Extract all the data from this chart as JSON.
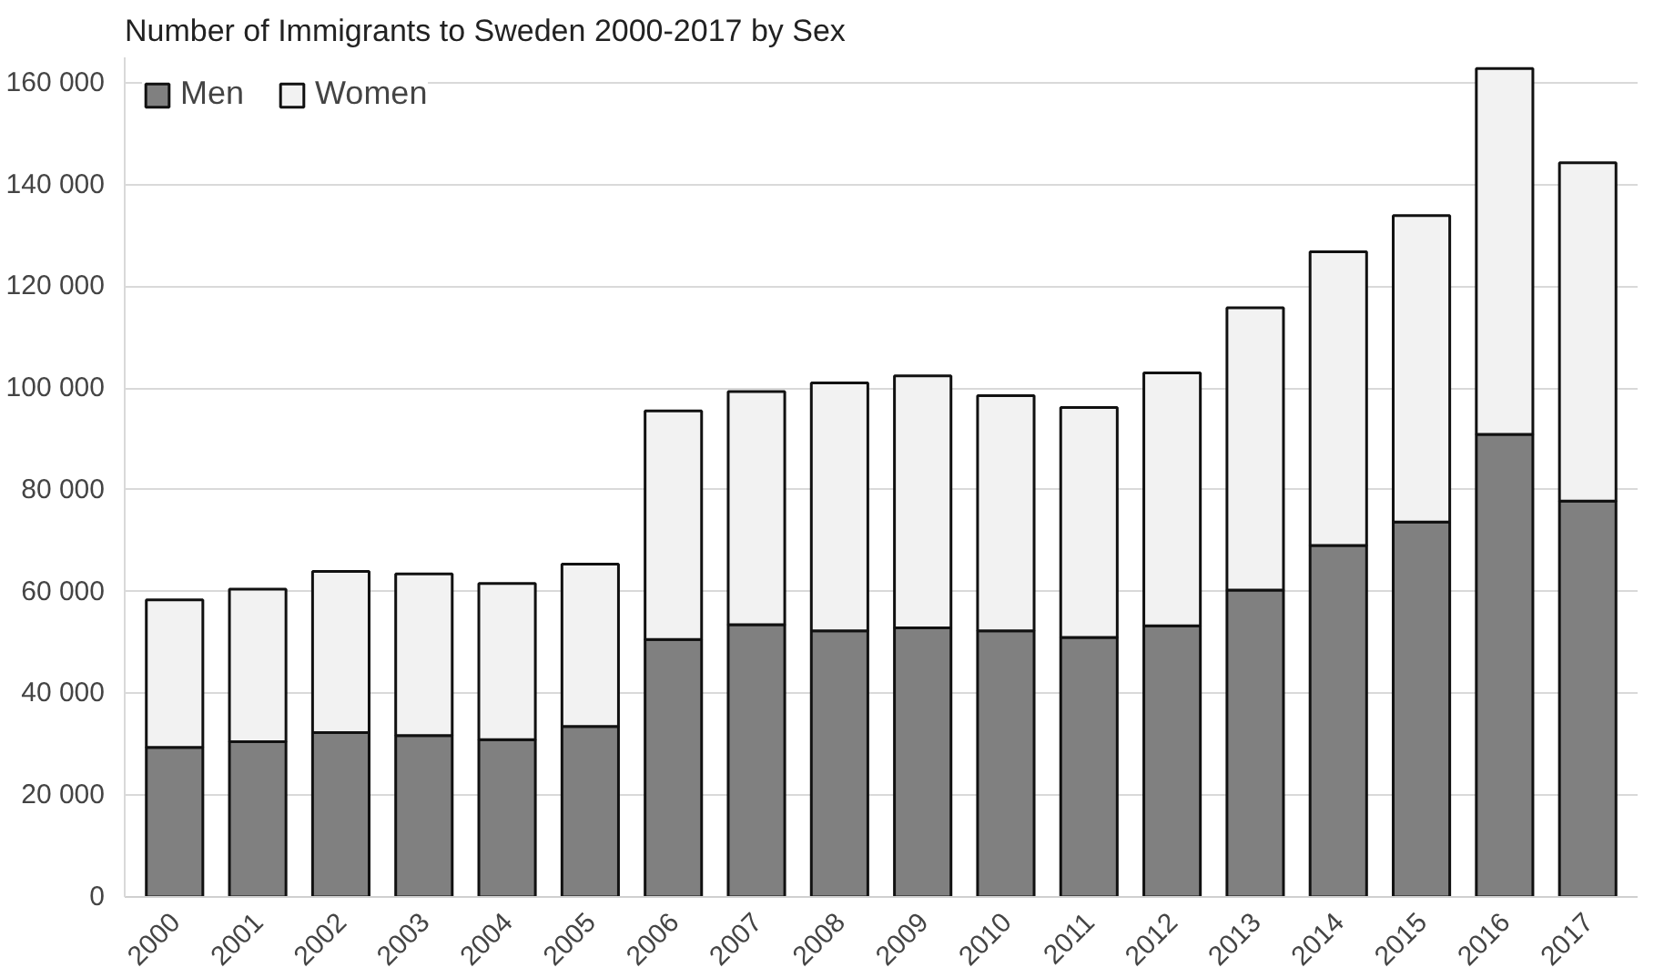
{
  "chart_data": {
    "type": "bar",
    "title": "Number of Immigrants to Sweden 2000-2017 by Sex",
    "categories": [
      "2000",
      "2001",
      "2002",
      "2003",
      "2004",
      "2005",
      "2006",
      "2007",
      "2008",
      "2009",
      "2010",
      "2011",
      "2012",
      "2013",
      "2014",
      "2015",
      "2016",
      "2017"
    ],
    "stacked": true,
    "series": [
      {
        "name": "Men",
        "color": "#808080",
        "values": [
          29400,
          30500,
          32300,
          31700,
          30900,
          33500,
          50600,
          53500,
          52300,
          52900,
          52300,
          51000,
          53300,
          60300,
          69100,
          73700,
          90900,
          77800
        ]
      },
      {
        "name": "Women",
        "color": "#f2f2f2",
        "values": [
          29000,
          30000,
          31700,
          31800,
          30700,
          31900,
          44900,
          45800,
          48700,
          49500,
          46200,
          45200,
          49700,
          55500,
          57700,
          60200,
          71900,
          66500
        ]
      }
    ],
    "ylim": [
      0,
      165000
    ],
    "yticks": [
      0,
      {
        "value": 20000,
        "label": "20 000"
      },
      {
        "value": 40000,
        "label": "40 000"
      },
      {
        "value": 60000,
        "label": "60 000"
      },
      {
        "value": 80000,
        "label": "80 000"
      },
      {
        "value": 100000,
        "label": "100 000"
      },
      {
        "value": 120000,
        "label": "120 000"
      },
      {
        "value": 140000,
        "label": "140 000"
      },
      {
        "value": 160000,
        "label": "160 000"
      }
    ],
    "grid": "y",
    "legend": "top left"
  }
}
